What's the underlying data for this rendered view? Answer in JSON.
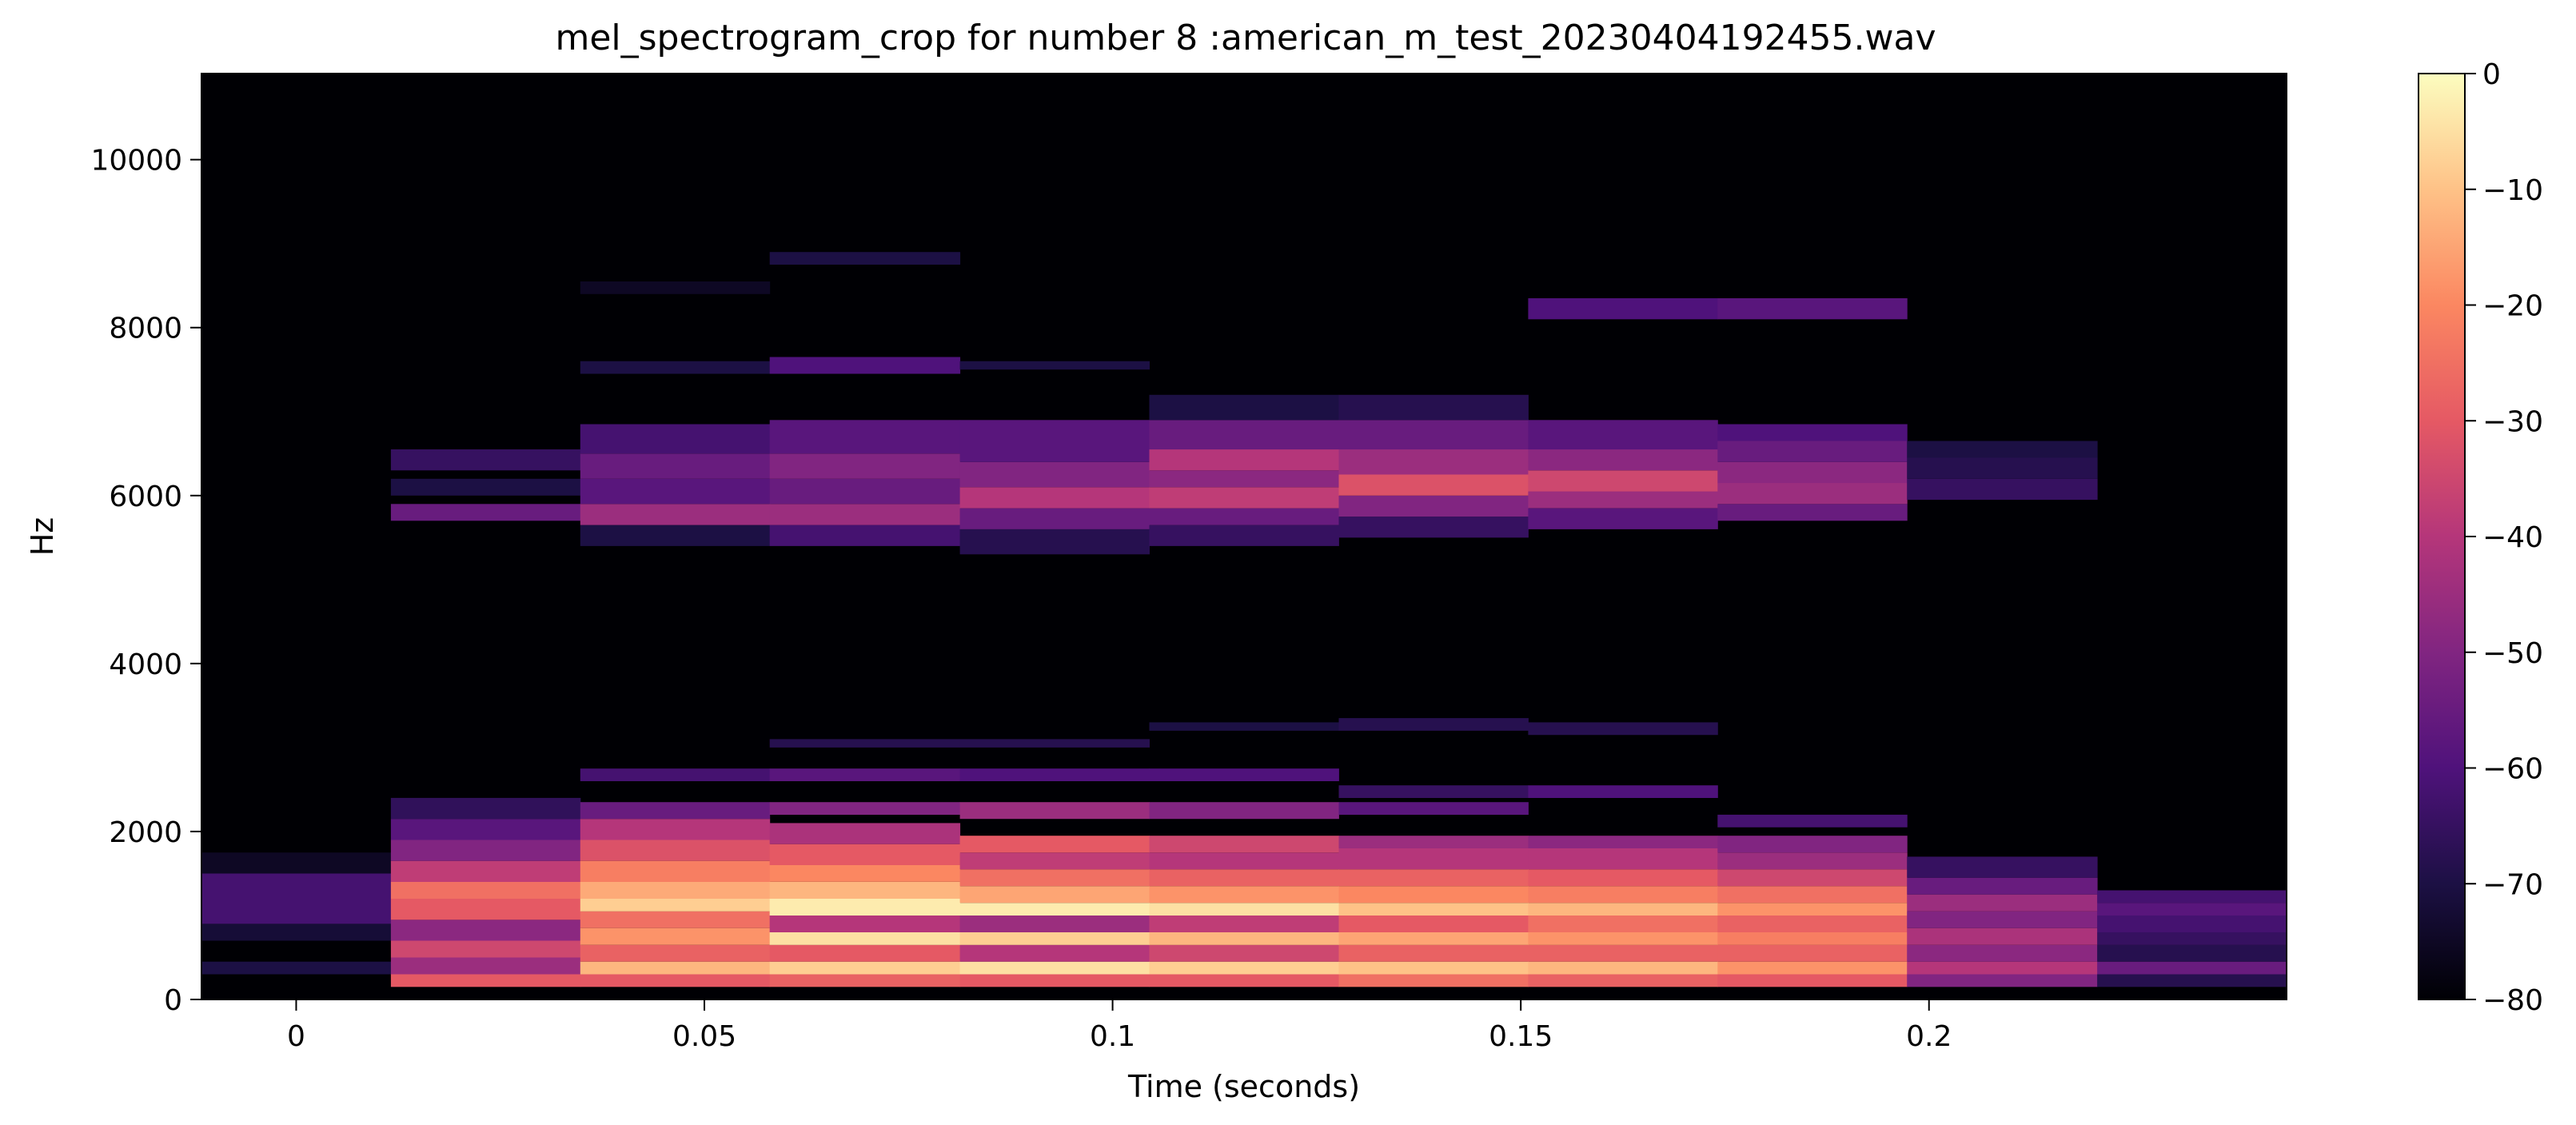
{
  "chart_data": {
    "type": "heatmap",
    "title": "mel_spectrogram_crop for number 8 :american_m_test_20230404192455.wav",
    "xlabel": "Time (seconds)",
    "ylabel": "Hz",
    "xlim": [
      -0.0116,
      0.2438
    ],
    "ylim": [
      0,
      11025
    ],
    "x_ticks": [
      0,
      0.05,
      0.1,
      0.15,
      0.2
    ],
    "x_tick_labels": [
      "0",
      "0.05",
      "0.1",
      "0.15",
      "0.2"
    ],
    "y_ticks": [
      0,
      2000,
      4000,
      6000,
      8000,
      10000
    ],
    "y_tick_labels": [
      "0",
      "2000",
      "4000",
      "6000",
      "8000",
      "10000"
    ],
    "colormap": "magma",
    "colorbar": {
      "min": -80,
      "max": 0,
      "ticks": [
        0,
        -10,
        -20,
        -30,
        -40,
        -50,
        -60,
        -70,
        -80
      ],
      "tick_labels": [
        "0",
        "−10",
        "−20",
        "−30",
        "−40",
        "−50",
        "−60",
        "−70",
        "−80"
      ]
    },
    "frame_edges_s": [
      -0.0116,
      0.0116,
      0.0348,
      0.058,
      0.0813,
      0.1045,
      0.1277,
      0.1509,
      0.1741,
      0.1973,
      0.2206,
      0.2438
    ],
    "frames": [
      {
        "bands": [
          [
            0,
            250,
            -80
          ],
          [
            300,
            450,
            -70
          ],
          [
            700,
            900,
            -72
          ],
          [
            900,
            1500,
            -62
          ],
          [
            1500,
            1750,
            -75
          ]
        ]
      },
      {
        "bands": [
          [
            150,
            300,
            -30
          ],
          [
            300,
            500,
            -45
          ],
          [
            500,
            700,
            -35
          ],
          [
            700,
            950,
            -48
          ],
          [
            950,
            1200,
            -30
          ],
          [
            1200,
            1400,
            -25
          ],
          [
            1400,
            1650,
            -38
          ],
          [
            1650,
            1900,
            -50
          ],
          [
            1900,
            2150,
            -58
          ],
          [
            2150,
            2400,
            -66
          ],
          [
            5700,
            5900,
            -55
          ],
          [
            6000,
            6200,
            -70
          ],
          [
            6300,
            6550,
            -65
          ]
        ]
      },
      {
        "bands": [
          [
            150,
            300,
            -30
          ],
          [
            300,
            450,
            -12
          ],
          [
            450,
            650,
            -28
          ],
          [
            650,
            850,
            -18
          ],
          [
            850,
            1050,
            -25
          ],
          [
            1050,
            1200,
            -8
          ],
          [
            1200,
            1400,
            -14
          ],
          [
            1400,
            1650,
            -22
          ],
          [
            1650,
            1900,
            -32
          ],
          [
            1900,
            2150,
            -40
          ],
          [
            2150,
            2350,
            -55
          ],
          [
            2600,
            2750,
            -62
          ],
          [
            5400,
            5650,
            -70
          ],
          [
            5650,
            5900,
            -45
          ],
          [
            5900,
            6200,
            -58
          ],
          [
            6200,
            6500,
            -55
          ],
          [
            6500,
            6850,
            -62
          ],
          [
            7450,
            7600,
            -70
          ],
          [
            8400,
            8550,
            -75
          ]
        ]
      },
      {
        "bands": [
          [
            150,
            300,
            -28
          ],
          [
            300,
            450,
            -8
          ],
          [
            450,
            650,
            -30
          ],
          [
            650,
            800,
            -5
          ],
          [
            800,
            1000,
            -40
          ],
          [
            1000,
            1200,
            -3
          ],
          [
            1200,
            1400,
            -12
          ],
          [
            1400,
            1600,
            -20
          ],
          [
            1600,
            1850,
            -30
          ],
          [
            1850,
            2100,
            -42
          ],
          [
            2200,
            2350,
            -50
          ],
          [
            2600,
            2750,
            -58
          ],
          [
            3000,
            3100,
            -68
          ],
          [
            5400,
            5650,
            -62
          ],
          [
            5650,
            5900,
            -45
          ],
          [
            5900,
            6200,
            -55
          ],
          [
            6200,
            6500,
            -50
          ],
          [
            6500,
            6900,
            -58
          ],
          [
            7450,
            7650,
            -60
          ],
          [
            8750,
            8900,
            -70
          ]
        ]
      },
      {
        "bands": [
          [
            150,
            300,
            -30
          ],
          [
            300,
            450,
            -5
          ],
          [
            450,
            650,
            -40
          ],
          [
            650,
            800,
            -8
          ],
          [
            800,
            1000,
            -45
          ],
          [
            1000,
            1150,
            -3
          ],
          [
            1150,
            1350,
            -15
          ],
          [
            1350,
            1550,
            -25
          ],
          [
            1550,
            1750,
            -38
          ],
          [
            1750,
            1950,
            -30
          ],
          [
            2150,
            2350,
            -45
          ],
          [
            2600,
            2750,
            -60
          ],
          [
            3000,
            3100,
            -68
          ],
          [
            5300,
            5600,
            -68
          ],
          [
            5600,
            5850,
            -55
          ],
          [
            5850,
            6100,
            -40
          ],
          [
            6100,
            6400,
            -50
          ],
          [
            6400,
            6900,
            -58
          ],
          [
            7500,
            7600,
            -70
          ]
        ]
      },
      {
        "bands": [
          [
            150,
            300,
            -30
          ],
          [
            300,
            450,
            -8
          ],
          [
            450,
            650,
            -35
          ],
          [
            650,
            800,
            -12
          ],
          [
            800,
            1000,
            -38
          ],
          [
            1000,
            1150,
            -5
          ],
          [
            1150,
            1350,
            -18
          ],
          [
            1350,
            1550,
            -28
          ],
          [
            1550,
            1750,
            -40
          ],
          [
            1750,
            1950,
            -35
          ],
          [
            2150,
            2350,
            -50
          ],
          [
            2600,
            2750,
            -60
          ],
          [
            3200,
            3300,
            -70
          ],
          [
            5400,
            5650,
            -65
          ],
          [
            5650,
            5850,
            -55
          ],
          [
            5850,
            6100,
            -38
          ],
          [
            6100,
            6300,
            -48
          ],
          [
            6300,
            6550,
            -40
          ],
          [
            6550,
            6900,
            -55
          ],
          [
            6900,
            7200,
            -70
          ]
        ]
      },
      {
        "bands": [
          [
            150,
            300,
            -25
          ],
          [
            300,
            450,
            -10
          ],
          [
            450,
            650,
            -28
          ],
          [
            650,
            800,
            -15
          ],
          [
            800,
            1000,
            -30
          ],
          [
            1000,
            1150,
            -10
          ],
          [
            1150,
            1350,
            -20
          ],
          [
            1350,
            1550,
            -28
          ],
          [
            1550,
            1800,
            -40
          ],
          [
            1800,
            1950,
            -45
          ],
          [
            2200,
            2350,
            -58
          ],
          [
            2400,
            2550,
            -65
          ],
          [
            3200,
            3350,
            -68
          ],
          [
            5500,
            5750,
            -65
          ],
          [
            5750,
            6000,
            -50
          ],
          [
            6000,
            6250,
            -32
          ],
          [
            6250,
            6550,
            -45
          ],
          [
            6550,
            6900,
            -55
          ],
          [
            6900,
            7200,
            -68
          ]
        ]
      },
      {
        "bands": [
          [
            150,
            300,
            -28
          ],
          [
            300,
            450,
            -12
          ],
          [
            450,
            650,
            -28
          ],
          [
            650,
            800,
            -18
          ],
          [
            800,
            1000,
            -25
          ],
          [
            1000,
            1150,
            -12
          ],
          [
            1150,
            1350,
            -22
          ],
          [
            1350,
            1550,
            -30
          ],
          [
            1550,
            1800,
            -40
          ],
          [
            1800,
            1950,
            -48
          ],
          [
            2400,
            2550,
            -60
          ],
          [
            3150,
            3300,
            -68
          ],
          [
            5600,
            5850,
            -58
          ],
          [
            5850,
            6050,
            -45
          ],
          [
            6050,
            6300,
            -35
          ],
          [
            6300,
            6550,
            -48
          ],
          [
            6550,
            6900,
            -58
          ],
          [
            8100,
            8350,
            -60
          ]
        ]
      },
      {
        "bands": [
          [
            150,
            300,
            -30
          ],
          [
            300,
            450,
            -18
          ],
          [
            450,
            650,
            -28
          ],
          [
            650,
            800,
            -22
          ],
          [
            800,
            1000,
            -28
          ],
          [
            1000,
            1150,
            -18
          ],
          [
            1150,
            1350,
            -25
          ],
          [
            1350,
            1550,
            -35
          ],
          [
            1550,
            1750,
            -45
          ],
          [
            1750,
            1950,
            -50
          ],
          [
            2050,
            2200,
            -62
          ],
          [
            5700,
            5900,
            -55
          ],
          [
            5900,
            6150,
            -45
          ],
          [
            6150,
            6400,
            -48
          ],
          [
            6400,
            6650,
            -55
          ],
          [
            6650,
            6850,
            -60
          ],
          [
            8100,
            8350,
            -58
          ]
        ]
      },
      {
        "bands": [
          [
            150,
            300,
            -50
          ],
          [
            300,
            450,
            -40
          ],
          [
            450,
            650,
            -48
          ],
          [
            650,
            850,
            -42
          ],
          [
            850,
            1050,
            -50
          ],
          [
            1050,
            1250,
            -45
          ],
          [
            1250,
            1450,
            -55
          ],
          [
            1450,
            1700,
            -65
          ],
          [
            5950,
            6200,
            -65
          ],
          [
            6200,
            6450,
            -68
          ],
          [
            6450,
            6650,
            -70
          ]
        ]
      },
      {
        "bands": [
          [
            150,
            300,
            -68
          ],
          [
            300,
            450,
            -55
          ],
          [
            450,
            650,
            -68
          ],
          [
            650,
            800,
            -65
          ],
          [
            800,
            1000,
            -62
          ],
          [
            1000,
            1150,
            -58
          ],
          [
            1150,
            1300,
            -62
          ]
        ]
      }
    ]
  }
}
